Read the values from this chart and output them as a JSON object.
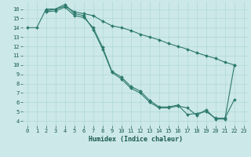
{
  "xlabel": "Humidex (Indice chaleur)",
  "bg_color": "#cce8e8",
  "grid_color": "#b0d8d8",
  "line_color": "#2d7a6e",
  "xlim": [
    -0.5,
    23.5
  ],
  "ylim": [
    3.5,
    16.8
  ],
  "xticks": [
    0,
    1,
    2,
    3,
    4,
    5,
    6,
    7,
    8,
    9,
    10,
    11,
    12,
    13,
    14,
    15,
    16,
    17,
    18,
    19,
    20,
    21,
    22,
    23
  ],
  "yticks": [
    4,
    5,
    6,
    7,
    8,
    9,
    10,
    11,
    12,
    13,
    14,
    15,
    16
  ],
  "line1_x": [
    0,
    1,
    2,
    3,
    4,
    5,
    6,
    7,
    8,
    9,
    10,
    11,
    12,
    13,
    14,
    15,
    16,
    17,
    18,
    19,
    20,
    21,
    22
  ],
  "line1_y": [
    14,
    14,
    16,
    16,
    16.3,
    15.7,
    15.5,
    15.3,
    14.7,
    14.2,
    14.0,
    13.7,
    13.3,
    13.0,
    12.7,
    12.3,
    12.0,
    11.7,
    11.3,
    11.0,
    10.7,
    10.3,
    10.0
  ],
  "line2_x": [
    2,
    3,
    4,
    5,
    6,
    7,
    8,
    9,
    10,
    11,
    12,
    13,
    14,
    15,
    16,
    17,
    18,
    19,
    20,
    21,
    22
  ],
  "line2_y": [
    15.8,
    16.0,
    16.5,
    15.5,
    15.3,
    13.8,
    11.7,
    9.2,
    8.5,
    7.5,
    7.0,
    6.0,
    5.4,
    5.4,
    5.6,
    5.4,
    4.6,
    5.2,
    4.2,
    4.2,
    10.0
  ],
  "line3_x": [
    2,
    3,
    4,
    5,
    6,
    7,
    8,
    9,
    10,
    11,
    12,
    13,
    14,
    15,
    16,
    17,
    18,
    19,
    20,
    21,
    22
  ],
  "line3_y": [
    15.7,
    15.8,
    16.2,
    15.3,
    15.1,
    14.0,
    11.9,
    9.3,
    8.7,
    7.7,
    7.2,
    6.2,
    5.5,
    5.5,
    5.7,
    4.7,
    4.8,
    5.0,
    4.3,
    4.3,
    6.3
  ]
}
